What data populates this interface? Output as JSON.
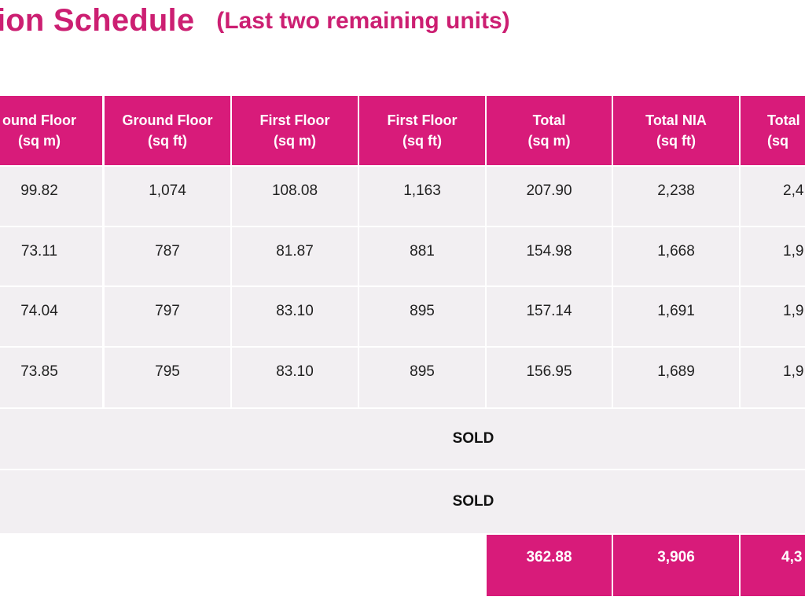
{
  "title": {
    "main": "ation Schedule",
    "sub": "(Last two remaining units)"
  },
  "table": {
    "headers": [
      {
        "line1": "ound Floor",
        "line2": "(sq m)"
      },
      {
        "line1": "Ground Floor",
        "line2": "(sq ft)"
      },
      {
        "line1": "First Floor",
        "line2": "(sq m)"
      },
      {
        "line1": "First Floor",
        "line2": "(sq ft)"
      },
      {
        "line1": "Total",
        "line2": "(sq m)"
      },
      {
        "line1": "Total NIA",
        "line2": "(sq ft)"
      },
      {
        "line1": "Total",
        "line2": "(sq"
      }
    ],
    "rows": [
      [
        "99.82",
        "1,074",
        "108.08",
        "1,163",
        "207.90",
        "2,238",
        "2,4"
      ],
      [
        "73.11",
        "787",
        "81.87",
        "881",
        "154.98",
        "1,668",
        "1,9"
      ],
      [
        "74.04",
        "797",
        "83.10",
        "895",
        "157.14",
        "1,691",
        "1,9"
      ],
      [
        "73.85",
        "795",
        "83.10",
        "895",
        "156.95",
        "1,689",
        "1,9"
      ]
    ],
    "sold_rows": [
      "SOLD",
      "SOLD"
    ],
    "totals": [
      "362.88",
      "3,906",
      "4,3"
    ]
  }
}
